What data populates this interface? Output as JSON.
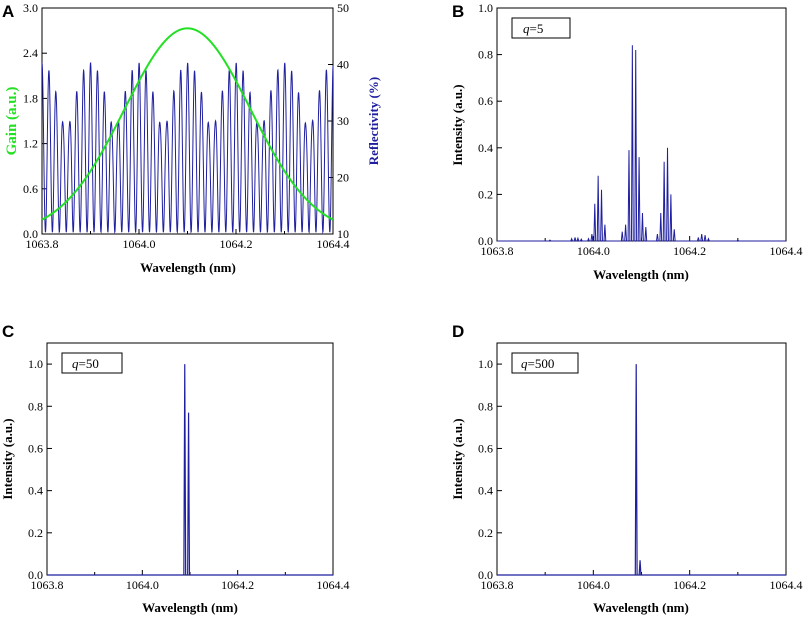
{
  "colors": {
    "axis": "#000000",
    "spectrum": "#1f1fa0",
    "gain": "#22e022",
    "reflectivity": "#1f1fa0"
  },
  "chart_data": [
    {
      "id": "A",
      "type": "line",
      "letter": "A",
      "xlabel": "Wavelength (nm)",
      "ylabel": "Gain (a.u.)",
      "y2label": "Reflectivity (%)",
      "xlim": [
        1063.8,
        1064.4
      ],
      "ylim": [
        0,
        3.0
      ],
      "y2lim": [
        10,
        50
      ],
      "xticks": [
        1063.8,
        1064.0,
        1064.2,
        1064.4
      ],
      "xtick_labels": [
        "1063.8",
        "1064.0",
        "1064.2",
        "1064.4"
      ],
      "yticks": [
        0,
        0.6,
        1.2,
        1.8,
        2.4,
        3.0
      ],
      "ytick_labels": [
        "0.0",
        "0.6",
        "1.2",
        "1.8",
        "2.4",
        "3.0"
      ],
      "y2ticks": [
        10,
        20,
        30,
        40,
        50
      ],
      "y2tick_labels": [
        "10",
        "20",
        "30",
        "40",
        "50"
      ],
      "series": [
        {
          "name": "Gain",
          "axis": "left",
          "shape": "gaussian",
          "center": 1064.1,
          "peak": 2.73,
          "sigma": 0.13,
          "color": "#22e022"
        },
        {
          "name": "Reflectivity",
          "axis": "right",
          "shape": "comb",
          "min": 10.3,
          "max": 40.3,
          "fast_period": 0.0143,
          "envelope_period": 0.1,
          "color": "#1f1fa0"
        }
      ]
    },
    {
      "id": "B",
      "type": "line",
      "letter": "B",
      "legend": {
        "var": "q",
        "eq": "=5"
      },
      "xlabel": "Wavelength (nm)",
      "ylabel": "Intensity (a.u.)",
      "xlim": [
        1063.8,
        1064.4
      ],
      "ylim": [
        0,
        1.0
      ],
      "xticks": [
        1063.8,
        1064.0,
        1064.2,
        1064.4
      ],
      "xtick_labels": [
        "1063.8",
        "1064.0",
        "1064.2",
        "1064.4"
      ],
      "yticks": [
        0,
        0.2,
        0.4,
        0.6,
        0.8,
        1.0
      ],
      "ytick_labels": [
        "0.0",
        "0.2",
        "0.4",
        "0.6",
        "0.8",
        "1.0"
      ],
      "peaks": [
        [
          1063.91,
          0.004
        ],
        [
          1063.955,
          0.01
        ],
        [
          1063.962,
          0.015
        ],
        [
          1063.968,
          0.012
        ],
        [
          1063.975,
          0.008
        ],
        [
          1063.99,
          0.01
        ],
        [
          1063.997,
          0.03
        ],
        [
          1064.003,
          0.16
        ],
        [
          1064.01,
          0.28
        ],
        [
          1064.017,
          0.22
        ],
        [
          1064.024,
          0.07
        ],
        [
          1064.06,
          0.04
        ],
        [
          1064.067,
          0.07
        ],
        [
          1064.074,
          0.39
        ],
        [
          1064.081,
          0.84
        ],
        [
          1064.088,
          0.82
        ],
        [
          1064.095,
          0.36
        ],
        [
          1064.102,
          0.12
        ],
        [
          1064.109,
          0.06
        ],
        [
          1064.133,
          0.03
        ],
        [
          1064.14,
          0.12
        ],
        [
          1064.147,
          0.34
        ],
        [
          1064.154,
          0.4
        ],
        [
          1064.161,
          0.2
        ],
        [
          1064.168,
          0.05
        ],
        [
          1064.218,
          0.015
        ],
        [
          1064.225,
          0.03
        ],
        [
          1064.232,
          0.025
        ],
        [
          1064.239,
          0.01
        ],
        [
          1064.3,
          0.004
        ]
      ]
    },
    {
      "id": "C",
      "type": "line",
      "letter": "C",
      "legend": {
        "var": "q",
        "eq": "=50"
      },
      "xlabel": "Wavelength (nm)",
      "ylabel": "Intensity (a.u.)",
      "xlim": [
        1063.8,
        1064.4
      ],
      "ylim": [
        0,
        1.1
      ],
      "xticks": [
        1063.8,
        1064.0,
        1064.2,
        1064.4
      ],
      "xtick_labels": [
        "1063.8",
        "1064.0",
        "1064.2",
        "1064.4"
      ],
      "yticks": [
        0,
        0.2,
        0.4,
        0.6,
        0.8,
        1.0
      ],
      "ytick_labels": [
        "0.0",
        "0.2",
        "0.4",
        "0.6",
        "0.8",
        "1.0"
      ],
      "peaks": [
        [
          1064.089,
          1.0
        ],
        [
          1064.097,
          0.77
        ]
      ]
    },
    {
      "id": "D",
      "type": "line",
      "letter": "D",
      "legend": {
        "var": "q",
        "eq": "=500"
      },
      "xlabel": "Wavelength (nm)",
      "ylabel": "Intensity (a.u.)",
      "xlim": [
        1063.8,
        1064.4
      ],
      "ylim": [
        0,
        1.1
      ],
      "xticks": [
        1063.8,
        1064.0,
        1064.2,
        1064.4
      ],
      "xtick_labels": [
        "1063.8",
        "1064.0",
        "1064.2",
        "1064.4"
      ],
      "yticks": [
        0,
        0.2,
        0.4,
        0.6,
        0.8,
        1.0
      ],
      "ytick_labels": [
        "0.0",
        "0.2",
        "0.4",
        "0.6",
        "0.8",
        "1.0"
      ],
      "peaks": [
        [
          1064.089,
          1.0
        ],
        [
          1064.097,
          0.07
        ]
      ]
    }
  ]
}
